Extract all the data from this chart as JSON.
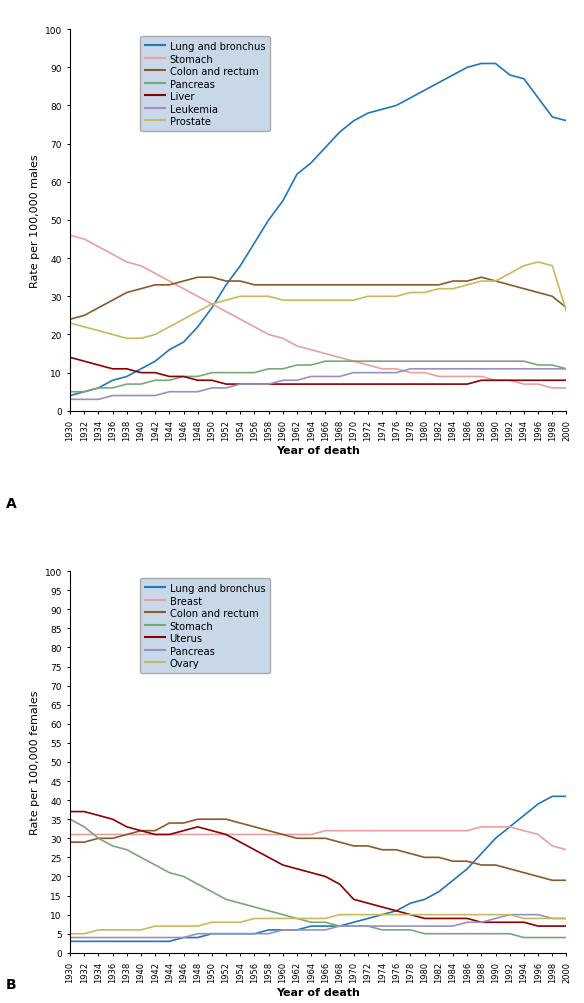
{
  "years": [
    1930,
    1932,
    1934,
    1936,
    1938,
    1940,
    1942,
    1944,
    1946,
    1948,
    1950,
    1952,
    1954,
    1956,
    1958,
    1960,
    1962,
    1964,
    1966,
    1968,
    1970,
    1972,
    1974,
    1976,
    1978,
    1980,
    1982,
    1984,
    1986,
    1988,
    1990,
    1992,
    1994,
    1996,
    1998,
    2000
  ],
  "male": {
    "lung": [
      4,
      5,
      6,
      8,
      9,
      11,
      13,
      16,
      18,
      22,
      27,
      33,
      38,
      44,
      50,
      55,
      62,
      65,
      69,
      73,
      76,
      78,
      79,
      80,
      82,
      84,
      86,
      88,
      90,
      91,
      91,
      88,
      87,
      82,
      77,
      76
    ],
    "stomach": [
      46,
      45,
      43,
      41,
      39,
      38,
      36,
      34,
      32,
      30,
      28,
      26,
      24,
      22,
      20,
      19,
      17,
      16,
      15,
      14,
      13,
      12,
      11,
      11,
      10,
      10,
      9,
      9,
      9,
      9,
      8,
      8,
      7,
      7,
      6,
      6
    ],
    "colon_rectum": [
      24,
      25,
      27,
      29,
      31,
      32,
      33,
      33,
      34,
      35,
      35,
      34,
      34,
      33,
      33,
      33,
      33,
      33,
      33,
      33,
      33,
      33,
      33,
      33,
      33,
      33,
      33,
      34,
      34,
      35,
      34,
      33,
      32,
      31,
      30,
      27
    ],
    "pancreas": [
      5,
      5,
      6,
      6,
      7,
      7,
      8,
      8,
      9,
      9,
      10,
      10,
      10,
      10,
      11,
      11,
      12,
      12,
      13,
      13,
      13,
      13,
      13,
      13,
      13,
      13,
      13,
      13,
      13,
      13,
      13,
      13,
      13,
      12,
      12,
      11
    ],
    "liver": [
      14,
      13,
      12,
      11,
      11,
      10,
      10,
      9,
      9,
      8,
      8,
      7,
      7,
      7,
      7,
      7,
      7,
      7,
      7,
      7,
      7,
      7,
      7,
      7,
      7,
      7,
      7,
      7,
      7,
      8,
      8,
      8,
      8,
      8,
      8,
      8
    ],
    "leukemia": [
      3,
      3,
      3,
      4,
      4,
      4,
      4,
      5,
      5,
      5,
      6,
      6,
      7,
      7,
      7,
      8,
      8,
      9,
      9,
      9,
      10,
      10,
      10,
      10,
      11,
      11,
      11,
      11,
      11,
      11,
      11,
      11,
      11,
      11,
      11,
      11
    ],
    "prostate": [
      23,
      22,
      21,
      20,
      19,
      19,
      20,
      22,
      24,
      26,
      28,
      29,
      30,
      30,
      30,
      29,
      29,
      29,
      29,
      29,
      29,
      30,
      30,
      30,
      31,
      31,
      32,
      32,
      33,
      34,
      34,
      36,
      38,
      39,
      38,
      26
    ]
  },
  "female": {
    "lung": [
      3,
      3,
      3,
      3,
      3,
      3,
      3,
      3,
      4,
      4,
      5,
      5,
      5,
      5,
      6,
      6,
      6,
      7,
      7,
      7,
      8,
      9,
      10,
      11,
      13,
      14,
      16,
      19,
      22,
      26,
      30,
      33,
      36,
      39,
      41,
      41
    ],
    "breast": [
      31,
      31,
      31,
      31,
      31,
      31,
      31,
      31,
      31,
      31,
      31,
      31,
      31,
      31,
      31,
      31,
      31,
      31,
      32,
      32,
      32,
      32,
      32,
      32,
      32,
      32,
      32,
      32,
      32,
      33,
      33,
      33,
      32,
      31,
      28,
      27
    ],
    "colon_rectum": [
      29,
      29,
      30,
      30,
      31,
      32,
      32,
      34,
      34,
      35,
      35,
      35,
      34,
      33,
      32,
      31,
      30,
      30,
      30,
      29,
      28,
      28,
      27,
      27,
      26,
      25,
      25,
      24,
      24,
      23,
      23,
      22,
      21,
      20,
      19,
      19
    ],
    "stomach": [
      35,
      33,
      30,
      28,
      27,
      25,
      23,
      21,
      20,
      18,
      16,
      14,
      13,
      12,
      11,
      10,
      9,
      8,
      8,
      7,
      7,
      7,
      6,
      6,
      6,
      5,
      5,
      5,
      5,
      5,
      5,
      5,
      4,
      4,
      4,
      4
    ],
    "uterus": [
      37,
      37,
      36,
      35,
      33,
      32,
      31,
      31,
      32,
      33,
      32,
      31,
      29,
      27,
      25,
      23,
      22,
      21,
      20,
      18,
      14,
      13,
      12,
      11,
      10,
      9,
      9,
      9,
      9,
      8,
      8,
      8,
      8,
      7,
      7,
      7
    ],
    "pancreas": [
      4,
      4,
      4,
      4,
      4,
      4,
      4,
      4,
      4,
      5,
      5,
      5,
      5,
      5,
      5,
      6,
      6,
      6,
      6,
      7,
      7,
      7,
      7,
      7,
      7,
      7,
      7,
      7,
      8,
      8,
      9,
      10,
      10,
      10,
      9,
      9
    ],
    "ovary": [
      5,
      5,
      6,
      6,
      6,
      6,
      7,
      7,
      7,
      7,
      8,
      8,
      8,
      9,
      9,
      9,
      9,
      9,
      9,
      10,
      10,
      10,
      10,
      10,
      10,
      10,
      10,
      10,
      10,
      10,
      10,
      10,
      9,
      9,
      9,
      9
    ]
  },
  "male_colors": {
    "lung": "#1F78B4",
    "stomach": "#E8A0A0",
    "colon_rectum": "#8B5A2B",
    "pancreas": "#78A878",
    "liver": "#8B0000",
    "leukemia": "#9B8FBF",
    "prostate": "#C8B860"
  },
  "female_colors": {
    "lung": "#1F78B4",
    "breast": "#E8A0A0",
    "colon_rectum": "#8B5A2B",
    "stomach": "#78A878",
    "uterus": "#8B0000",
    "pancreas": "#9B8FBF",
    "ovary": "#C8B860"
  },
  "male_keys": [
    "lung",
    "stomach",
    "colon_rectum",
    "pancreas",
    "liver",
    "leukemia",
    "prostate"
  ],
  "female_keys": [
    "lung",
    "breast",
    "colon_rectum",
    "stomach",
    "uterus",
    "pancreas",
    "ovary"
  ],
  "male_labels": [
    "Lung and bronchus",
    "Stomach",
    "Colon and rectum",
    "Pancreas",
    "Liver",
    "Leukemia",
    "Prostate"
  ],
  "female_labels": [
    "Lung and bronchus",
    "Breast",
    "Colon and rectum",
    "Stomach",
    "Uterus",
    "Pancreas",
    "Ovary"
  ],
  "ylabel_male": "Rate per 100,000 males",
  "ylabel_female": "Rate per 100,000 females",
  "xlabel": "Year of death",
  "label_A": "A",
  "label_B": "B",
  "ylim_male": [
    0,
    100
  ],
  "ylim_female": [
    0,
    100
  ],
  "yticks_male": [
    0,
    10,
    20,
    30,
    40,
    50,
    60,
    70,
    80,
    90,
    100
  ],
  "yticks_female": [
    0,
    5,
    10,
    15,
    20,
    25,
    30,
    35,
    40,
    45,
    50,
    55,
    60,
    65,
    70,
    75,
    80,
    85,
    90,
    95,
    100
  ],
  "legend_bg": "#C8D8E8",
  "bg_color": "#FFFFFF",
  "linewidth": 1.2
}
